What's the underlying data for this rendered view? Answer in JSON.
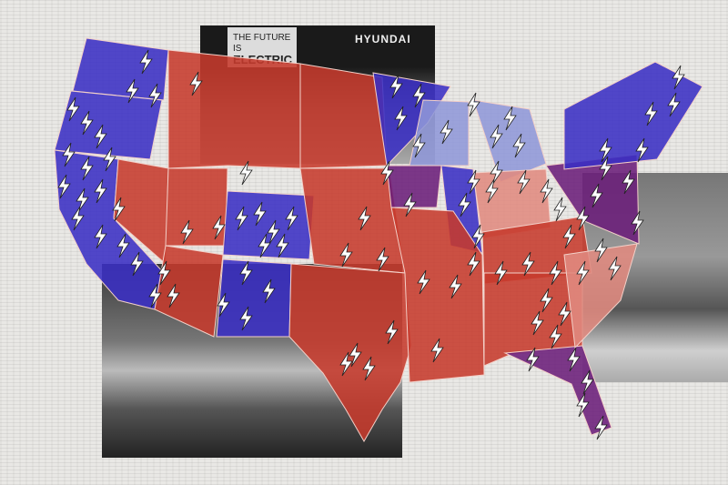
{
  "collage": {
    "sign_line1": "THE FUTURE IS",
    "sign_line2": "ELECTRIC",
    "brand_logo": "HYUNDAI"
  },
  "colors": {
    "democrat_blue": "#3a2fc4",
    "light_blue": "#8f97d8",
    "republican_red": "#c63a2c",
    "light_red": "#e08a80",
    "purple": "#6b1e7a",
    "bolt_fill": "#ffffff",
    "background": "#e9e8e5"
  },
  "icons": {
    "bolt": "lightning-bolt-icon"
  }
}
